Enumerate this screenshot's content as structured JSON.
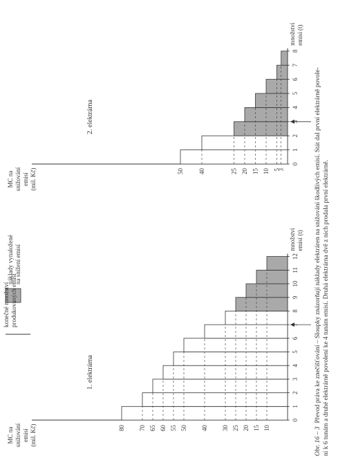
{
  "chart_data": [
    {
      "type": "bar",
      "ylabel": [
        "MC na",
        "snižování",
        "emisí",
        "(mil. Kč)"
      ],
      "xlabel": [
        "množství",
        "emisí (t)"
      ],
      "plant_label": "1. elektrárna",
      "x_ticks": [
        "0",
        "1",
        "2",
        "3",
        "4",
        "5",
        "6",
        "7",
        "8",
        "9",
        "10",
        "11",
        "12"
      ],
      "y_ticks": [
        10,
        15,
        20,
        25,
        30,
        40,
        50,
        55,
        60,
        65,
        70,
        80
      ],
      "bars": [
        {
          "x": 1,
          "value": 80,
          "shaded": false
        },
        {
          "x": 2,
          "value": 70,
          "shaded": false
        },
        {
          "x": 3,
          "value": 65,
          "shaded": false
        },
        {
          "x": 4,
          "value": 60,
          "shaded": false
        },
        {
          "x": 5,
          "value": 55,
          "shaded": false
        },
        {
          "x": 6,
          "value": 50,
          "shaded": false
        },
        {
          "x": 7,
          "value": 40,
          "shaded": false
        },
        {
          "x": 8,
          "value": 30,
          "shaded": false
        },
        {
          "x": 9,
          "value": 25,
          "shaded": true
        },
        {
          "x": 10,
          "value": 20,
          "shaded": true
        },
        {
          "x": 11,
          "value": 15,
          "shaded": true
        },
        {
          "x": 12,
          "value": 10,
          "shaded": true
        }
      ],
      "marker_x": 7,
      "xlim": [
        0,
        12
      ],
      "ylim": [
        0,
        80
      ]
    },
    {
      "type": "bar",
      "ylabel": [
        "MC na",
        "snižování",
        "emisí",
        "(mil. Kč)"
      ],
      "xlabel": [
        "množství",
        "emisí (t)"
      ],
      "plant_label": "2. elektrárna",
      "x_ticks": [
        "0",
        "1",
        "2",
        "3",
        "4",
        "5",
        "6",
        "7",
        "8"
      ],
      "y_ticks": [
        3,
        5,
        10,
        15,
        20,
        25,
        40,
        50
      ],
      "bars": [
        {
          "x": 1,
          "value": 50,
          "shaded": false
        },
        {
          "x": 2,
          "value": 40,
          "shaded": false
        },
        {
          "x": 3,
          "value": 25,
          "shaded": true
        },
        {
          "x": 4,
          "value": 20,
          "shaded": true
        },
        {
          "x": 5,
          "value": 15,
          "shaded": true
        },
        {
          "x": 6,
          "value": 10,
          "shaded": true
        },
        {
          "x": 7,
          "value": 5,
          "shaded": true
        },
        {
          "x": 8,
          "value": 3,
          "shaded": true
        }
      ],
      "marker_x": 3,
      "xlim": [
        0,
        8
      ],
      "ylim": [
        0,
        50
      ]
    }
  ],
  "legend": {
    "line_label": [
      "konečné množství",
      "produkovaných emisí"
    ],
    "box_label": [
      "náklady vynaložené",
      "na snížení emisí"
    ]
  },
  "caption": {
    "label": "Obr. 16 – 3",
    "lines": [
      "Převod práva ke znečišťování – Sloupky znázorňují náklady elektráren na snižování škodlivých emisí. Stát dal první elektrárně povole-",
      "ní k 6 tunám a druhé elektrárně povolení ke 4 tunám emisí. Druhá elektrárna dvě z nich prodala první elektrárně."
    ]
  },
  "colors": {
    "ink": "#333333",
    "shade": "#a9a9a9"
  }
}
